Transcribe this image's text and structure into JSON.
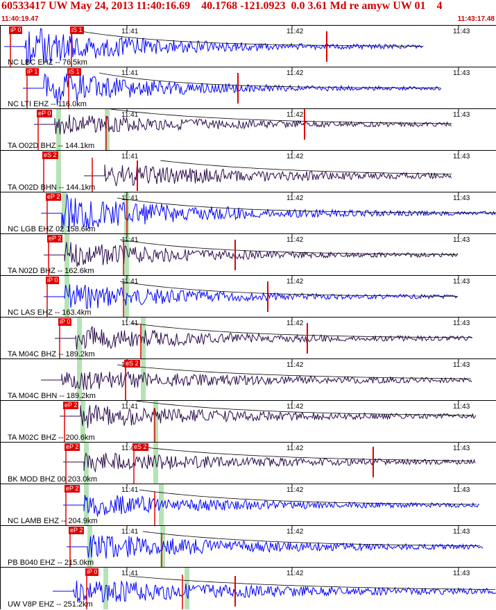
{
  "header": {
    "title": "60533417 UW May 24, 2013 11:40:16.69    40.1768 -121.0923  0.0 3.61 Md re amyw UW 01    4",
    "start_time": "11:40:19.47",
    "end_time": "11:43:17.48"
  },
  "colors": {
    "accent_red": "#e00000",
    "trace_blue": "#0000ff",
    "trace_dark": "#2a0a4a",
    "window_green": "#b6e3b6"
  },
  "time_labels": [
    "11:41",
    "11:42",
    "11:43"
  ],
  "panels": [
    {
      "station": "NC LBC EHZ -- 76.5km",
      "picks": [
        "iP 0",
        "iS 1"
      ],
      "color": "blue"
    },
    {
      "station": "NC LTI EHZ -- 116.0km",
      "picks": [
        "iP 1",
        "iS 1"
      ],
      "color": "blue"
    },
    {
      "station": "TA O02D BHZ -- 144.1km",
      "picks": [
        "eP 0"
      ],
      "color": "dark"
    },
    {
      "station": "TA O02D BHN -- 144.1km",
      "picks": [
        "eS 2"
      ],
      "color": "dark"
    },
    {
      "station": "NC LGB EHZ 02 158.6km",
      "picks": [
        "eP 2"
      ],
      "color": "blue"
    },
    {
      "station": "TA N02D BHZ -- 162.6km",
      "picks": [
        "eP 2"
      ],
      "color": "dark"
    },
    {
      "station": "NC LAS EHZ -- 163.4km",
      "picks": [
        "iP 0"
      ],
      "color": "blue"
    },
    {
      "station": "TA M04C BHZ -- 189.2km",
      "picks": [
        "iP 0"
      ],
      "color": "dark"
    },
    {
      "station": "TA M04C BHN -- 189.2km",
      "picks": [
        "eS 2"
      ],
      "color": "dark"
    },
    {
      "station": "TA M02C BHZ -- 200.6km",
      "picks": [
        "eP 2"
      ],
      "color": "dark"
    },
    {
      "station": "BK MOD BHZ 00 203.0km",
      "picks": [
        "eP 2",
        "eS 2"
      ],
      "color": "dark"
    },
    {
      "station": "NC LAMB EHZ -- 204.9km",
      "picks": [
        "eP 2"
      ],
      "color": "blue"
    },
    {
      "station": "PB B040 EHZ -- 215.0km",
      "picks": [
        "eP 2"
      ],
      "color": "blue"
    },
    {
      "station": "UW V8P EHZ -- 251.2km",
      "picks": [
        "iP 0"
      ],
      "color": "blue"
    }
  ]
}
